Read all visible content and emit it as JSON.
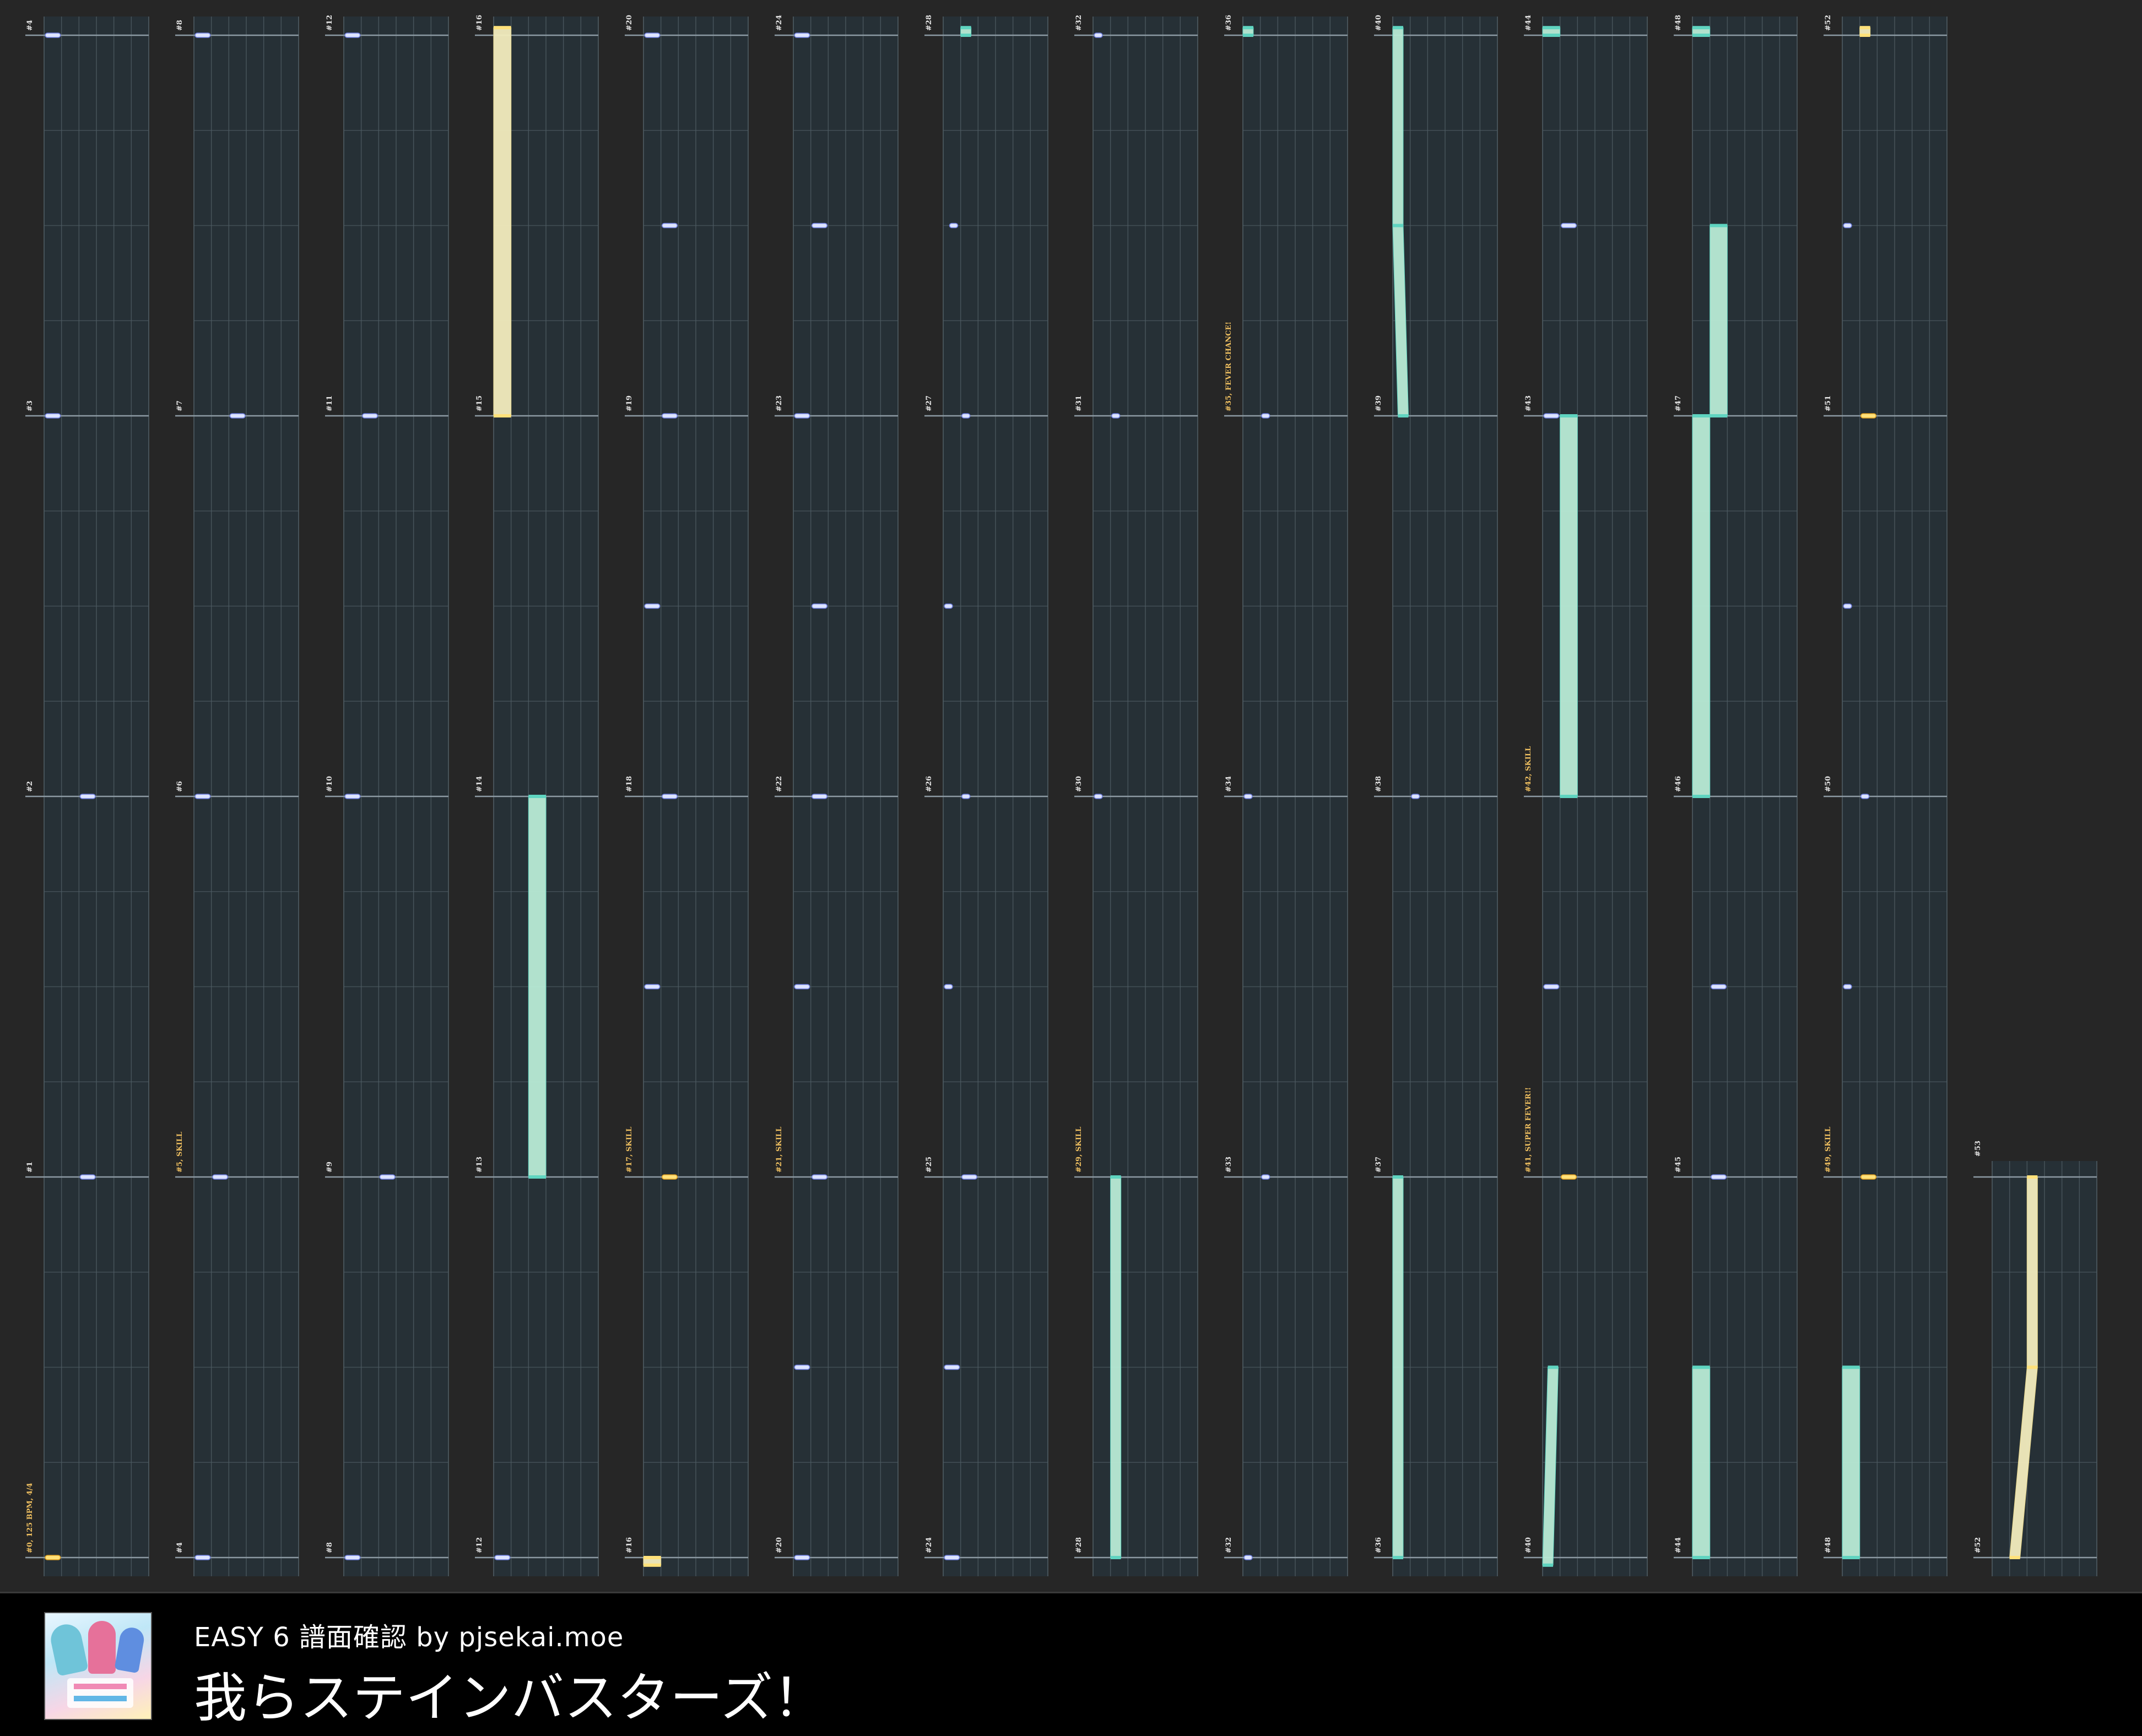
{
  "footer": {
    "subtitle": "EASY 6 譜面確認 by pjsekai.moe",
    "title": "我らステインバスターズ！"
  },
  "chart": {
    "measure_labels": [
      [
        "#4",
        "#3",
        "#2",
        "#1",
        "#0, 125 BPM, 4/4"
      ],
      [
        "#8",
        "#7",
        "#6",
        "#5, SKILL",
        "#4"
      ],
      [
        "#12",
        "#11",
        "#10",
        "#9",
        "#8"
      ],
      [
        "#16",
        "#15",
        "#14",
        "#13",
        "#12"
      ],
      [
        "#20",
        "#19",
        "#18",
        "#17, SKILL",
        "#16"
      ],
      [
        "#24",
        "#23",
        "#22",
        "#21, SKILL",
        "#20"
      ],
      [
        "#28",
        "#27",
        "#26",
        "#25",
        "#24"
      ],
      [
        "#32",
        "#31",
        "#30",
        "#29, SKILL",
        "#28"
      ],
      [
        "#36",
        "#35, FEVER CHANCE!",
        "#34",
        "#33",
        "#32"
      ],
      [
        "#40",
        "#39",
        "#38",
        "#37",
        "#36"
      ],
      [
        "#44",
        "#43",
        "#42, SKILL",
        "#41, SUPER FEVER!!",
        "#40"
      ],
      [
        "#48",
        "#47",
        "#46",
        "#45",
        "#44"
      ],
      [
        "#52",
        "#51",
        "#50",
        "#49, SKILL",
        "#48"
      ],
      [
        "#53",
        "",
        "",
        "",
        "#52"
      ]
    ],
    "colors": {
      "background": "#262626",
      "lane": "#263036",
      "grid": "#4e5c63",
      "tap": "#dde4ff",
      "tap_edge": "#6f7fe0",
      "critical": "#ffe17a",
      "slide": "#b8ebd6",
      "slide_edge": "#5fd4c0",
      "critical_slide": "#f2ecbe",
      "label": "#e6e6e6",
      "event_label": "#f0c060"
    }
  }
}
